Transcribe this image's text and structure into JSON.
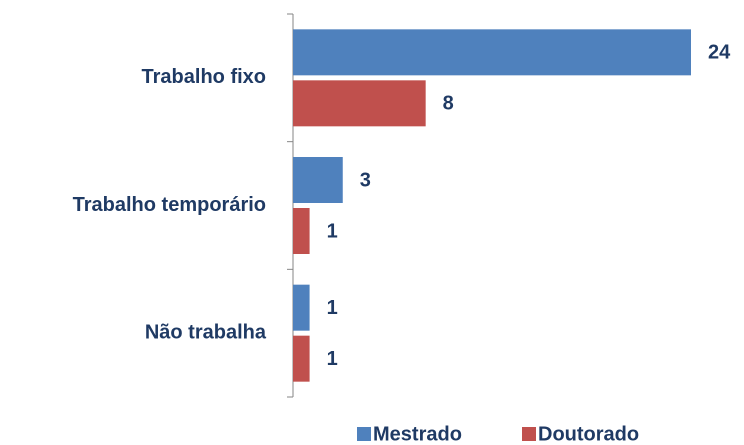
{
  "chart_data": {
    "type": "barh",
    "categories": [
      "Trabalho fixo",
      "Trabalho temporário",
      "Não trabalha"
    ],
    "series": [
      {
        "name": "Mestrado",
        "color": "#4f81bd",
        "values": [
          24,
          3,
          1
        ]
      },
      {
        "name": "Doutorado",
        "color": "#c0504d",
        "values": [
          8,
          1,
          1
        ]
      }
    ],
    "legend": "bottom"
  }
}
